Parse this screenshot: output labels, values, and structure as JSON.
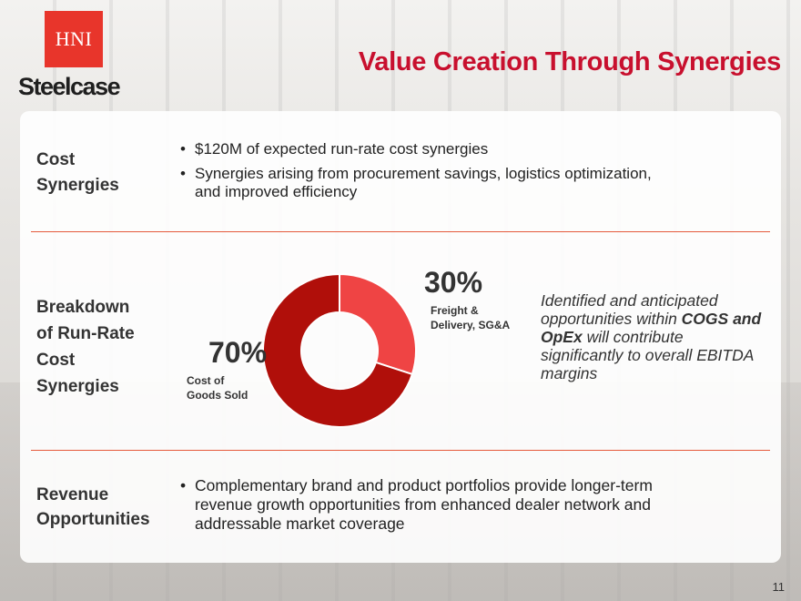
{
  "header": {
    "logo_text": "HNI",
    "brand_text": "Steelcase",
    "title": "Value Creation Through Synergies"
  },
  "sections": {
    "cost": {
      "label_line1": "Cost",
      "label_line2": "Synergies",
      "bullets": [
        "$120M of expected run-rate cost synergies",
        "Synergies arising from procurement savings, logistics optimization,",
        "and improved efficiency"
      ]
    },
    "breakdown": {
      "label_lines": [
        "Breakdown",
        "of Run-Rate",
        "Cost",
        "Synergies"
      ],
      "callout_part1": "Identified and anticipated opportunities within ",
      "callout_bold1": "COGS and OpEx",
      "callout_part2": " will contribute significantly to overall EBITDA margins"
    },
    "revenue": {
      "label_line1": "Revenue",
      "label_line2": "Opportunities",
      "bullet_lines": [
        "Complementary brand and product portfolios provide longer-term",
        "revenue growth opportunities from enhanced dealer network and",
        "addressable market coverage"
      ]
    }
  },
  "chart_data": {
    "type": "pie",
    "categories": [
      "Freight & Delivery, SG&A",
      "Cost of Goods Sold"
    ],
    "values": [
      30,
      70
    ],
    "value_labels": [
      "30%",
      "70%"
    ],
    "sub_labels": [
      [
        "Freight &",
        "Delivery, SG&A"
      ],
      [
        "Cost of",
        "Goods Sold"
      ]
    ],
    "colors": [
      "#ef4444",
      "#b00f0a"
    ],
    "donut": true
  },
  "footer": {
    "page_number": "11"
  }
}
